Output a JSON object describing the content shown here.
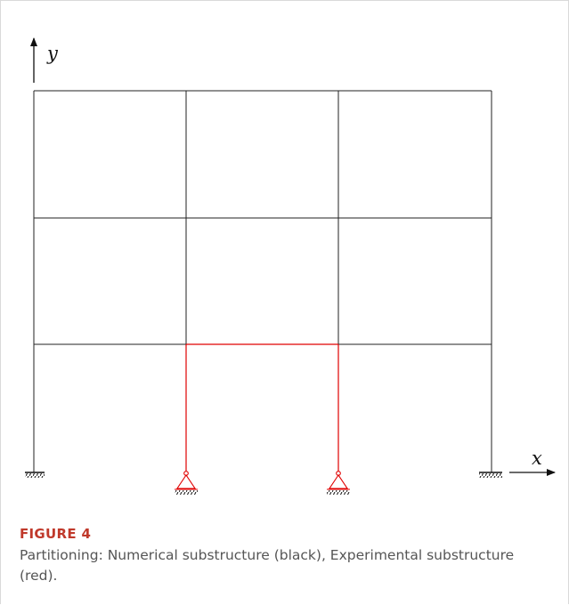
{
  "figure": {
    "label": "FIGURE 4",
    "caption": "Partitioning: Numerical substructure (black), Experimental substructure (red).",
    "axis_x": "x",
    "axis_y": "y"
  },
  "colors": {
    "numerical": "#000000",
    "experimental": "#e00000"
  }
}
